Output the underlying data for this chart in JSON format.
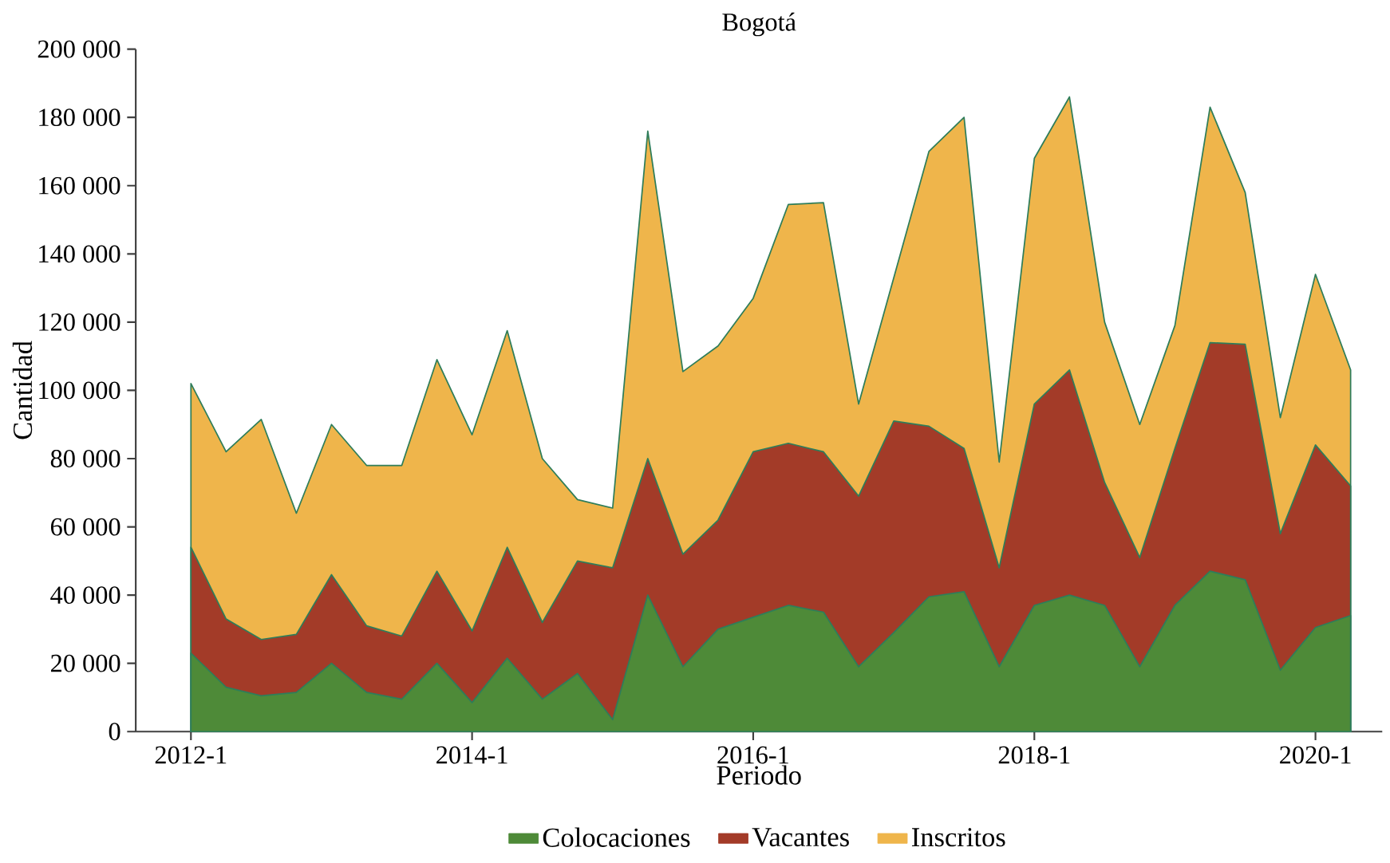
{
  "chart_data": {
    "type": "area",
    "title": "Bogotá",
    "xlabel": "Periodo",
    "ylabel": "Cantidad",
    "categories": [
      "2012-1",
      null,
      null,
      null,
      null,
      null,
      null,
      null,
      "2014-1",
      null,
      null,
      null,
      null,
      null,
      null,
      null,
      "2016-1",
      null,
      null,
      null,
      null,
      null,
      null,
      null,
      "2018-1",
      null,
      null,
      null,
      null,
      null,
      null,
      null,
      "2020-1",
      null
    ],
    "series": [
      {
        "name": "Colocaciones",
        "color": "#4e8a38",
        "values": [
          23000,
          13000,
          10500,
          11500,
          20000,
          11500,
          9500,
          20000,
          8500,
          21500,
          9500,
          17000,
          3500,
          40000,
          19000,
          30000,
          33500,
          37000,
          35000,
          19000,
          29000,
          39500,
          41000,
          19000,
          37000,
          40000,
          37000,
          19000,
          37000,
          47000,
          44500,
          18000,
          30500,
          34000
        ]
      },
      {
        "name": "Vacantes",
        "color": "#a33b28",
        "values": [
          54000,
          33000,
          27000,
          28500,
          46000,
          31000,
          28000,
          47000,
          29500,
          54000,
          32000,
          50000,
          48000,
          80000,
          52000,
          62000,
          82000,
          84500,
          82000,
          69000,
          91000,
          89500,
          83000,
          48000,
          96000,
          106000,
          73000,
          51000,
          83000,
          114000,
          113500,
          58000,
          84000,
          72000
        ]
      },
      {
        "name": "Inscritos",
        "color": "#efb54b",
        "values": [
          102000,
          82000,
          91500,
          64000,
          90000,
          78000,
          78000,
          109000,
          87000,
          117500,
          80000,
          68000,
          65500,
          176000,
          105500,
          113000,
          127000,
          154500,
          155000,
          96000,
          133000,
          170000,
          180000,
          79000,
          168000,
          186000,
          120000,
          90000,
          119000,
          183000,
          158000,
          92000,
          134000,
          106000
        ]
      }
    ],
    "ylim": [
      0,
      200000
    ],
    "yticks": [
      0,
      {
        "value": 20000,
        "label": "20 000"
      },
      {
        "value": 40000,
        "label": "40 000"
      },
      {
        "value": 60000,
        "label": "60 000"
      },
      {
        "value": 80000,
        "label": "80 000"
      },
      {
        "value": 100000,
        "label": "100 000"
      },
      {
        "value": 120000,
        "label": "120 000"
      },
      {
        "value": 140000,
        "label": "140 000"
      },
      {
        "value": 160000,
        "label": "160 000"
      },
      {
        "value": 180000,
        "label": "180 000"
      },
      {
        "value": 200000,
        "label": "200 000"
      }
    ],
    "grid": false,
    "legend": "bottom"
  }
}
